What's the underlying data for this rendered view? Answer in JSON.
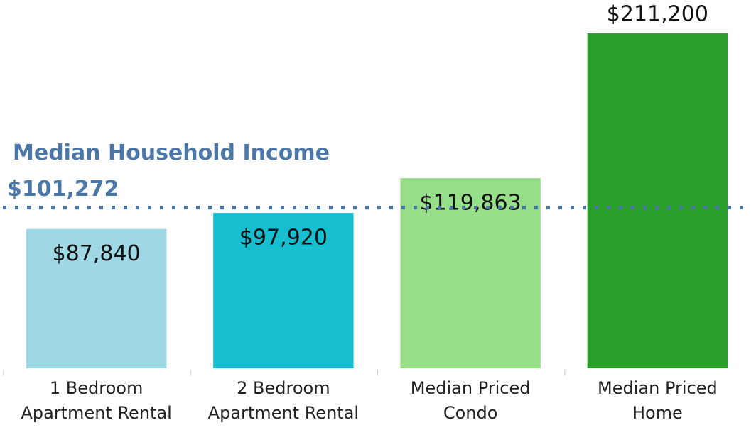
{
  "chart_data": {
    "type": "bar",
    "categories": [
      "1 Bedroom Apartment Rental",
      "2 Bedroom Apartment Rental",
      "Median Priced Condo",
      "Median Priced Home"
    ],
    "values": [
      87840,
      97920,
      119863,
      211200
    ],
    "value_labels": [
      "$87,840",
      "$97,920",
      "$119,863",
      "$211,200"
    ],
    "colors": [
      "#a0d9e6",
      "#17becf",
      "#98df8a",
      "#2ca02c"
    ],
    "ylim": [
      0,
      215000
    ],
    "reference_line": {
      "label": "Median Household Income",
      "value": 101272,
      "value_label": "$101,272",
      "color": "#4a77a8"
    }
  }
}
